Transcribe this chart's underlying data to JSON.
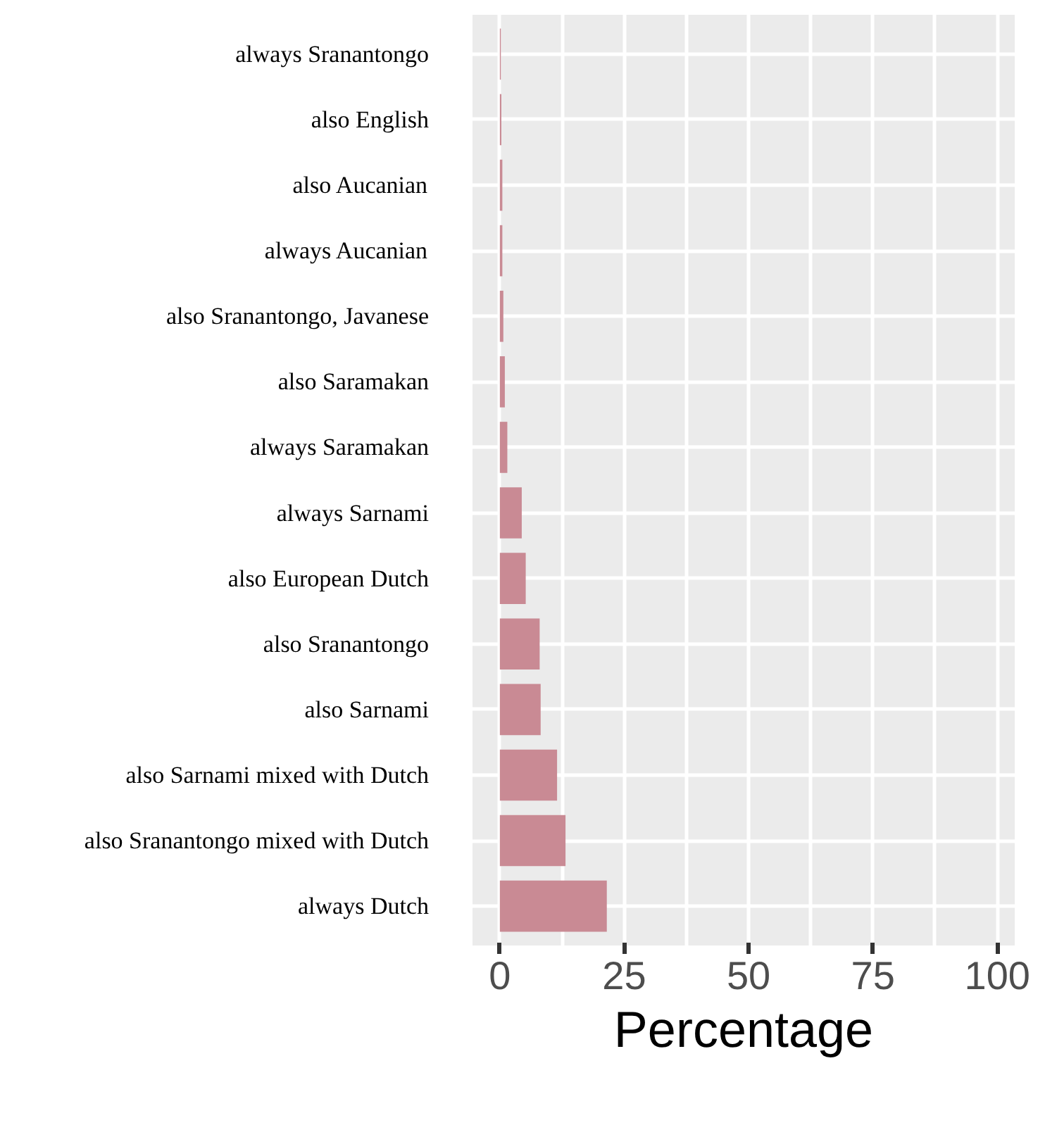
{
  "chart_data": {
    "type": "bar",
    "orientation": "horizontal",
    "xlabel": "Percentage",
    "categories": [
      "always Sranantongo",
      "also English",
      "also Aucanian",
      "always Aucanian",
      "also Sranantongo, Javanese",
      "also Saramakan",
      "always Saramakan",
      "always Sarnami",
      "also European Dutch",
      "also Sranantongo",
      "also Sarnami",
      "also Sarnami mixed with Dutch",
      "also Sranantongo mixed with Dutch",
      "always Dutch"
    ],
    "values": [
      0.2,
      0.3,
      0.5,
      0.5,
      0.7,
      1.0,
      1.5,
      4.4,
      5.2,
      8.0,
      8.2,
      11.5,
      13.2,
      21.5
    ],
    "color": "#c98a94",
    "xlim": [
      -5.5,
      103.5
    ],
    "xticks": [
      0,
      {
        "value": 12.5,
        "label": null
      },
      25,
      {
        "value": 37.5,
        "label": null
      },
      50,
      {
        "value": 62.5,
        "label": null
      },
      75,
      {
        "value": 87.5,
        "label": null
      },
      100
    ],
    "grid": true
  }
}
